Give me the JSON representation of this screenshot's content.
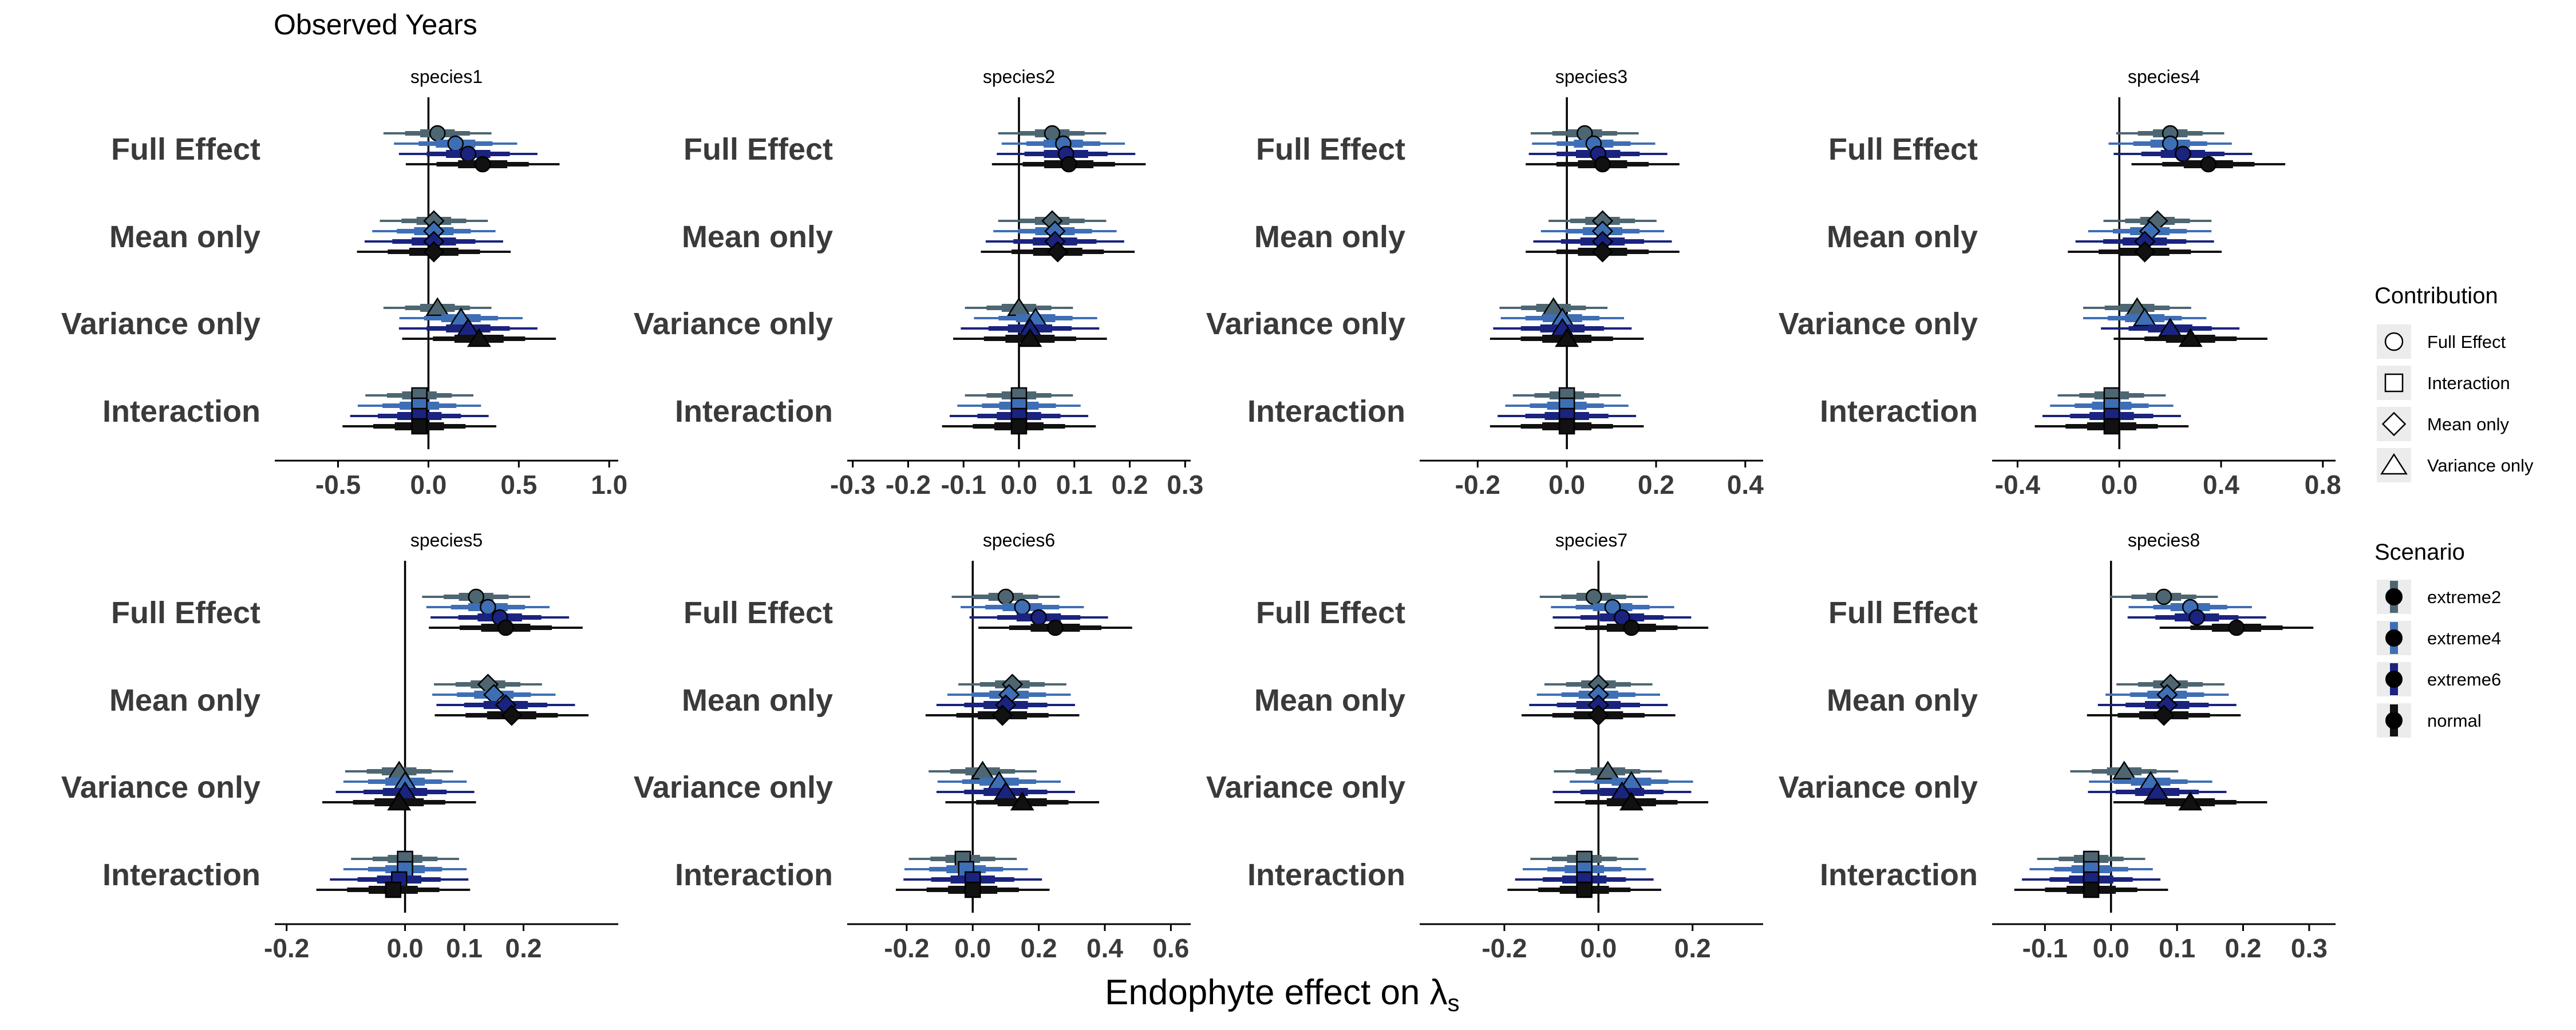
{
  "title": "Observed Years",
  "xlabel": "Endophyte effect on λs",
  "xlabel_main": "Endophyte effect on λ",
  "xlabel_sub": "s",
  "colors": {
    "extreme2": "#4d6672",
    "extreme4": "#3e6fb5",
    "extreme6": "#1a237e",
    "normal": "#111111",
    "reference_line": "#000000",
    "label": "#3a3a3a",
    "legend_key_bg": "#ececec"
  },
  "legend": {
    "contribution_title": "Contribution",
    "contribution_items": [
      {
        "label": "Full Effect",
        "shape": "circle"
      },
      {
        "label": "Interaction",
        "shape": "square"
      },
      {
        "label": "Mean only",
        "shape": "diamond"
      },
      {
        "label": "Variance only",
        "shape": "triangle"
      }
    ],
    "scenario_title": "Scenario",
    "scenario_items": [
      {
        "label": "extreme2",
        "color": "#4d6672"
      },
      {
        "label": "extreme4",
        "color": "#3e6fb5"
      },
      {
        "label": "extreme6",
        "color": "#1a237e"
      },
      {
        "label": "normal",
        "color": "#111111"
      }
    ]
  },
  "chart_data": {
    "type": "forest",
    "categories": [
      "Full Effect",
      "Mean only",
      "Variance only",
      "Interaction"
    ],
    "scenarios": [
      "extreme2",
      "extreme4",
      "extreme6",
      "normal"
    ],
    "panels": [
      {
        "name": "species1",
        "xlim": [
          -0.85,
          1.05
        ],
        "ticks": [
          -0.5,
          0.0,
          0.5,
          1.0
        ],
        "tick_labels": [
          "-0.5",
          "0.0",
          "0.5",
          "1.0"
        ],
        "points": {
          "Full Effect": [
            0.05,
            0.15,
            0.22,
            0.3
          ],
          "Mean only": [
            0.03,
            0.03,
            0.03,
            0.03
          ],
          "Variance only": [
            0.05,
            0.18,
            0.22,
            0.28
          ],
          "Interaction": [
            -0.05,
            -0.05,
            -0.05,
            -0.05
          ]
        }
      },
      {
        "name": "species2",
        "xlim": [
          -0.31,
          0.31
        ],
        "ticks": [
          -0.3,
          -0.2,
          -0.1,
          0.0,
          0.1,
          0.2,
          0.3
        ],
        "tick_labels": [
          "-0.3",
          "-0.2",
          "-0.1",
          "0.0",
          "0.1",
          "0.2",
          "0.3"
        ],
        "points": {
          "Full Effect": [
            0.06,
            0.08,
            0.085,
            0.09
          ],
          "Mean only": [
            0.06,
            0.065,
            0.065,
            0.07
          ],
          "Variance only": [
            0.0,
            0.03,
            0.02,
            0.02
          ],
          "Interaction": [
            0.0,
            0.0,
            0.0,
            0.0
          ]
        }
      },
      {
        "name": "species3",
        "xlim": [
          -0.33,
          0.44
        ],
        "ticks": [
          -0.2,
          0.0,
          0.2,
          0.4
        ],
        "tick_labels": [
          "-0.2",
          "0.0",
          "0.2",
          "0.4"
        ],
        "points": {
          "Full Effect": [
            0.04,
            0.06,
            0.07,
            0.08
          ],
          "Mean only": [
            0.08,
            0.08,
            0.08,
            0.08
          ],
          "Variance only": [
            -0.03,
            -0.01,
            -0.01,
            0.0
          ],
          "Interaction": [
            0.0,
            0.0,
            0.0,
            0.0
          ]
        }
      },
      {
        "name": "species4",
        "xlim": [
          -0.5,
          0.85
        ],
        "ticks": [
          -0.4,
          0.0,
          0.4,
          0.8
        ],
        "tick_labels": [
          "-0.4",
          "0.0",
          "0.4",
          "0.8"
        ],
        "points": {
          "Full Effect": [
            0.2,
            0.2,
            0.25,
            0.35
          ],
          "Mean only": [
            0.15,
            0.12,
            0.1,
            0.1
          ],
          "Variance only": [
            0.07,
            0.1,
            0.2,
            0.28
          ],
          "Interaction": [
            -0.03,
            -0.03,
            -0.03,
            -0.03
          ]
        }
      },
      {
        "name": "species5",
        "xlim": [
          -0.22,
          0.36
        ],
        "ticks": [
          -0.2,
          0.0,
          0.1,
          0.2
        ],
        "tick_labels": [
          "-0.2",
          "0.0",
          "0.1",
          "0.2"
        ],
        "points": {
          "Full Effect": [
            0.12,
            0.14,
            0.16,
            0.17
          ],
          "Mean only": [
            0.14,
            0.15,
            0.17,
            0.18
          ],
          "Variance only": [
            -0.01,
            0.0,
            0.0,
            -0.01
          ],
          "Interaction": [
            0.0,
            0.0,
            -0.01,
            -0.02
          ]
        }
      },
      {
        "name": "species6",
        "xlim": [
          -0.38,
          0.66
        ],
        "ticks": [
          -0.2,
          0.0,
          0.2,
          0.4,
          0.6
        ],
        "tick_labels": [
          "-0.2",
          "0.0",
          "0.2",
          "0.4",
          "0.6"
        ],
        "points": {
          "Full Effect": [
            0.1,
            0.15,
            0.2,
            0.25
          ],
          "Mean only": [
            0.12,
            0.11,
            0.1,
            0.09
          ],
          "Variance only": [
            0.03,
            0.08,
            0.1,
            0.15
          ],
          "Interaction": [
            -0.03,
            -0.02,
            0.0,
            0.0
          ]
        }
      },
      {
        "name": "species7",
        "xlim": [
          -0.38,
          0.35
        ],
        "ticks": [
          -0.2,
          0.0,
          0.2
        ],
        "tick_labels": [
          "-0.2",
          "0.0",
          "0.2"
        ],
        "points": {
          "Full Effect": [
            -0.01,
            0.03,
            0.05,
            0.07
          ],
          "Mean only": [
            0.0,
            0.0,
            0.0,
            0.0
          ],
          "Variance only": [
            0.02,
            0.07,
            0.05,
            0.07
          ],
          "Interaction": [
            -0.03,
            -0.03,
            -0.03,
            -0.03
          ]
        }
      },
      {
        "name": "species8",
        "xlim": [
          -0.18,
          0.34
        ],
        "ticks": [
          -0.1,
          0.0,
          0.1,
          0.2,
          0.3
        ],
        "tick_labels": [
          "-0.1",
          "0.0",
          "0.1",
          "0.2",
          "0.3"
        ],
        "points": {
          "Full Effect": [
            0.08,
            0.12,
            0.13,
            0.19
          ],
          "Mean only": [
            0.09,
            0.085,
            0.085,
            0.08
          ],
          "Variance only": [
            0.02,
            0.06,
            0.07,
            0.12
          ],
          "Interaction": [
            -0.03,
            -0.03,
            -0.03,
            -0.03
          ]
        }
      }
    ]
  }
}
